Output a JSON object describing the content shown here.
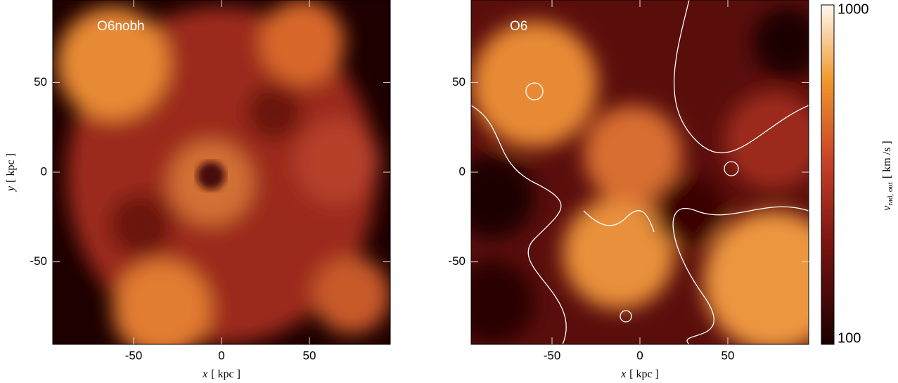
{
  "chart_data": [
    {
      "type": "image",
      "title": "O6nobh",
      "xlabel": {
        "var": "x",
        "unit": "[ kpc ]"
      },
      "ylabel": {
        "var": "y",
        "unit": "[ kpc ]"
      },
      "xlim": [
        -96,
        96
      ],
      "ylim": [
        -96,
        96
      ],
      "xticks": [
        -50,
        0,
        50
      ],
      "yticks": [
        -50,
        0,
        50
      ]
    },
    {
      "type": "image",
      "title": "O6",
      "xlabel": {
        "var": "x",
        "unit": "[ kpc ]"
      },
      "xlim": [
        -96,
        96
      ],
      "ylim": [
        -96,
        96
      ],
      "xticks": [
        -50,
        0,
        50
      ],
      "yticks": [
        -50,
        0,
        50
      ],
      "colorbar": {
        "var": "v",
        "sub": "rad, out",
        "unit": "[ km /s ]",
        "lim": [
          100,
          1000
        ],
        "ticks": [
          100,
          1000
        ],
        "log": true
      }
    }
  ]
}
